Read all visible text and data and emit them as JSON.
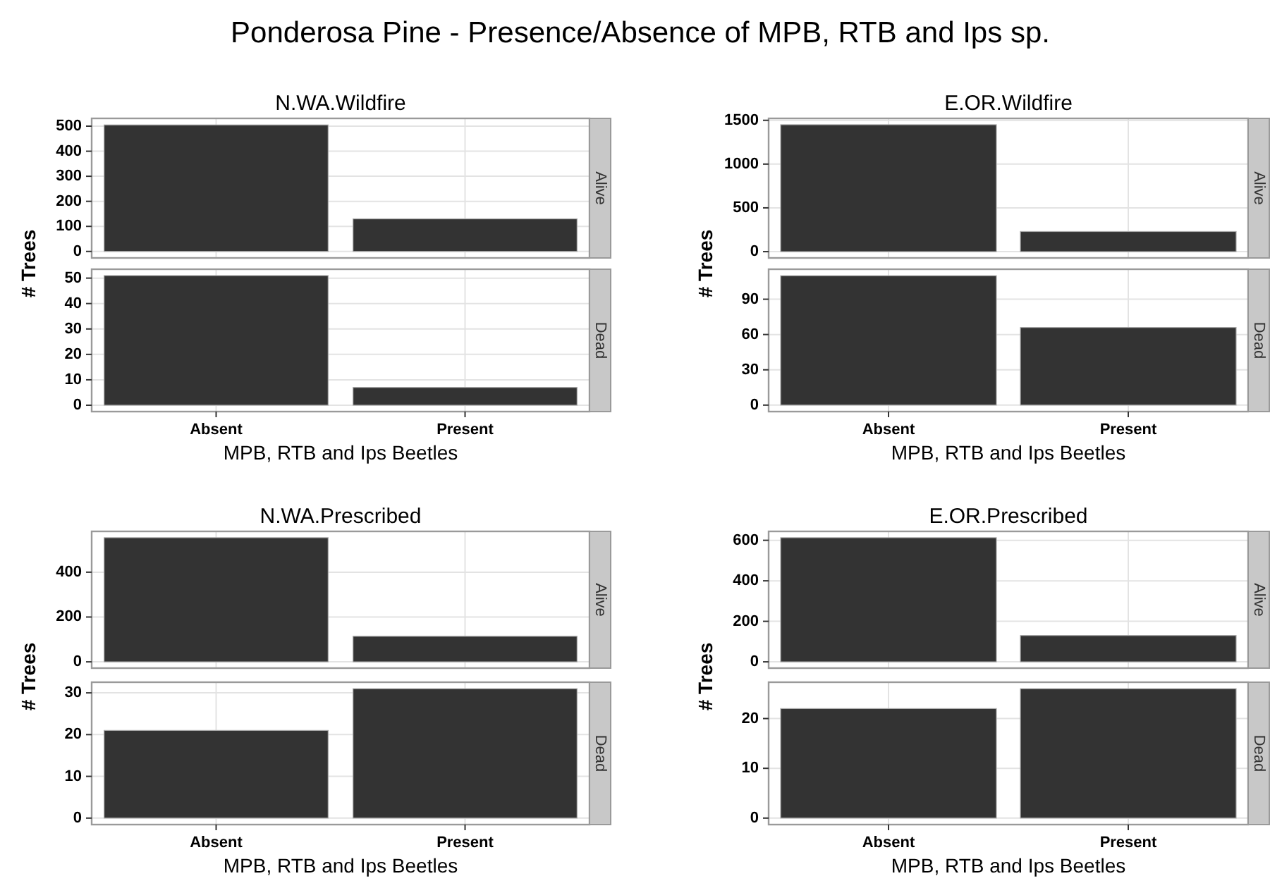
{
  "chart_data": [
    {
      "type": "other",
      "title": "Ponderosa Pine - Presence/Absence of MPB, RTB and Ips sp."
    },
    {
      "type": "bar",
      "title": "N.WA.Wildfire",
      "annotations": [
        "Alive"
      ],
      "categories": [
        null,
        null
      ],
      "values": [
        505,
        130
      ],
      "color": "#333333",
      "ylim": [
        -26,
        531
      ],
      "yticks": [
        0,
        100,
        200,
        300,
        400,
        500
      ],
      "grid": true,
      "tick_labels": "y"
    },
    {
      "type": "bar",
      "annotations": [
        "Dead"
      ],
      "xlabel": "MPB, RTB and Ips Beetles",
      "ylabel": "# Trees",
      "categories": [
        "Absent",
        "Present"
      ],
      "values": [
        51,
        7
      ],
      "color": "#333333",
      "ylim": [
        -2.5,
        53.5
      ],
      "yticks": [
        0,
        10,
        20,
        30,
        40,
        50
      ],
      "grid": true
    },
    {
      "type": "bar",
      "title": "E.OR.Wildfire",
      "annotations": [
        "Alive"
      ],
      "categories": [
        null,
        null
      ],
      "values": [
        1450,
        230
      ],
      "color": "#333333",
      "ylim": [
        -72,
        1522
      ],
      "yticks": [
        0,
        500,
        1000,
        1500
      ],
      "grid": true,
      "tick_labels": "y"
    },
    {
      "type": "bar",
      "annotations": [
        "Dead"
      ],
      "xlabel": "MPB, RTB and Ips Beetles",
      "ylabel": "# Trees",
      "categories": [
        "Absent",
        "Present"
      ],
      "values": [
        110,
        66
      ],
      "color": "#333333",
      "ylim": [
        -5.5,
        115.5
      ],
      "yticks": [
        0,
        30,
        60,
        90
      ],
      "grid": true
    },
    {
      "type": "bar",
      "title": "N.WA.Prescribed",
      "annotations": [
        "Alive"
      ],
      "categories": [
        null,
        null
      ],
      "values": [
        554,
        114
      ],
      "color": "#333333",
      "ylim": [
        -28,
        582
      ],
      "yticks": [
        0,
        200,
        400
      ],
      "grid": true,
      "tick_labels": "y"
    },
    {
      "type": "bar",
      "annotations": [
        "Dead"
      ],
      "xlabel": "MPB, RTB and Ips Beetles",
      "ylabel": "# Trees",
      "categories": [
        "Absent",
        "Present"
      ],
      "values": [
        21,
        31
      ],
      "color": "#333333",
      "ylim": [
        -1.55,
        32.55
      ],
      "yticks": [
        0,
        10,
        20,
        30
      ],
      "grid": true
    },
    {
      "type": "bar",
      "title": "E.OR.Prescribed",
      "annotations": [
        "Alive"
      ],
      "categories": [
        null,
        null
      ],
      "values": [
        613,
        130
      ],
      "color": "#333333",
      "ylim": [
        -31,
        644
      ],
      "yticks": [
        0,
        200,
        400,
        600
      ],
      "grid": true,
      "tick_labels": "y"
    },
    {
      "type": "bar",
      "annotations": [
        "Dead"
      ],
      "xlabel": "MPB, RTB and Ips Beetles",
      "ylabel": "# Trees",
      "categories": [
        "Absent",
        "Present"
      ],
      "values": [
        22,
        26
      ],
      "color": "#333333",
      "ylim": [
        -1.3,
        27.3
      ],
      "yticks": [
        0,
        10,
        20
      ],
      "grid": true
    }
  ]
}
